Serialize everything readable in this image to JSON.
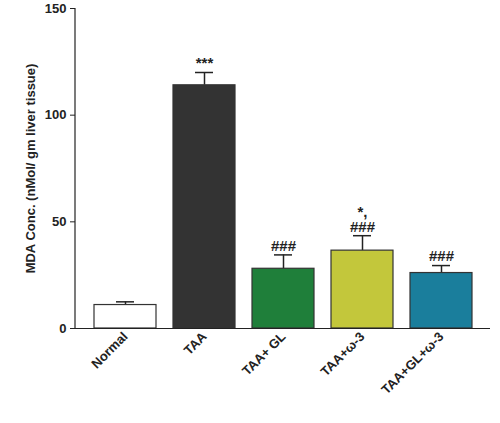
{
  "chart_data": {
    "type": "bar",
    "y_label": "MDA Conc. (nMol/ gm liver tissue)",
    "categories": [
      "Normal",
      "TAA",
      "TAA+ GL",
      "TAA+ω-3",
      "TAA+GL+ω-3"
    ],
    "values": [
      11,
      114,
      28,
      36.5,
      26
    ],
    "errors": [
      1.5,
      6,
      6.5,
      7,
      3.5
    ],
    "annotations": [
      [],
      [
        "***"
      ],
      [
        "###"
      ],
      [
        "*,",
        "###"
      ],
      [
        "###"
      ]
    ],
    "colors": [
      "#ffffff",
      "#333333",
      "#1f7f3a",
      "#c3c73b",
      "#1a7e9c"
    ],
    "ylim": [
      0,
      150
    ],
    "yticks": [
      0,
      50,
      100,
      150
    ],
    "grid": false
  }
}
